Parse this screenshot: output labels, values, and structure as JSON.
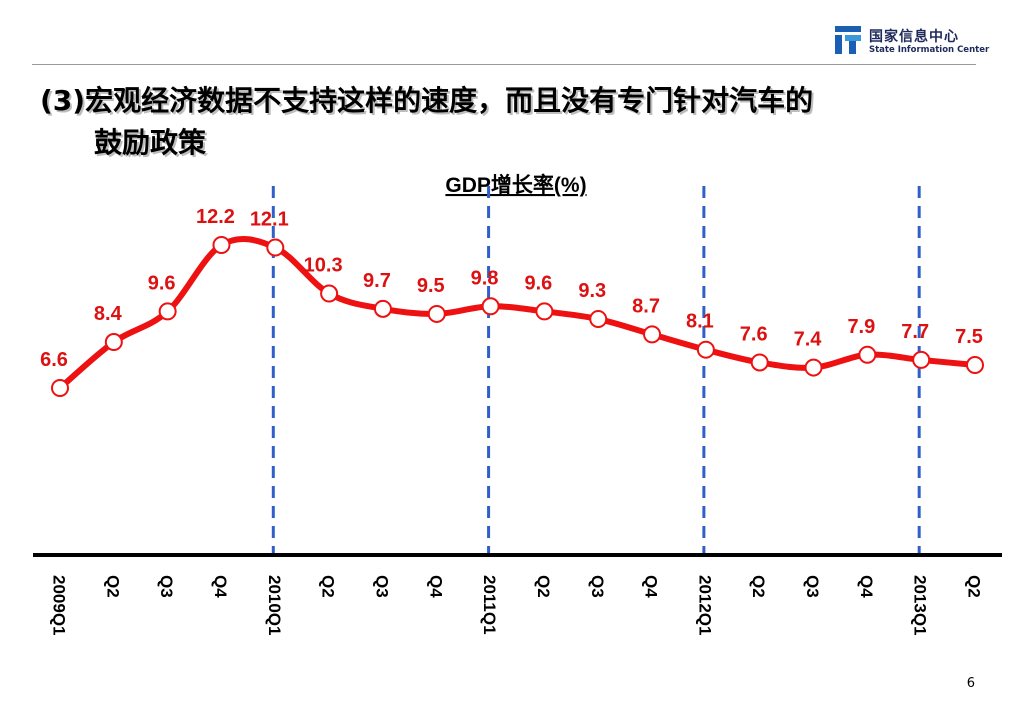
{
  "header": {
    "logo_cn": "国家信息中心",
    "logo_en": "State Information Center",
    "logo_color": "#1a5fb4"
  },
  "title": {
    "line1": "(3)宏观经济数据不支持这样的速度，而且没有专门针对汽车的",
    "line2": "鼓励政策"
  },
  "chart_data": {
    "type": "line",
    "title": "GDP增长率(%)",
    "categories": [
      "2009Q1",
      "Q2",
      "Q3",
      "Q4",
      "2010Q1",
      "Q2",
      "Q3",
      "Q4",
      "2011Q1",
      "Q2",
      "Q3",
      "Q4",
      "2012Q1",
      "Q2",
      "Q3",
      "Q4",
      "2013Q1",
      "Q2"
    ],
    "series": [
      {
        "values": [
          6.6,
          8.4,
          9.6,
          12.2,
          12.1,
          10.3,
          9.7,
          9.5,
          9.8,
          9.6,
          9.3,
          8.7,
          8.1,
          7.6,
          7.4,
          7.9,
          7.7,
          7.5
        ]
      }
    ],
    "year_markers": [
      "2010Q1",
      "2011Q1",
      "2012Q1",
      "2013Q1"
    ],
    "line_color": "#ee1111",
    "label_color": "#dd1111",
    "marker_line_color": "#2f5fc8",
    "grid": false,
    "legend": "none"
  },
  "footer": {
    "page_number": "6"
  }
}
